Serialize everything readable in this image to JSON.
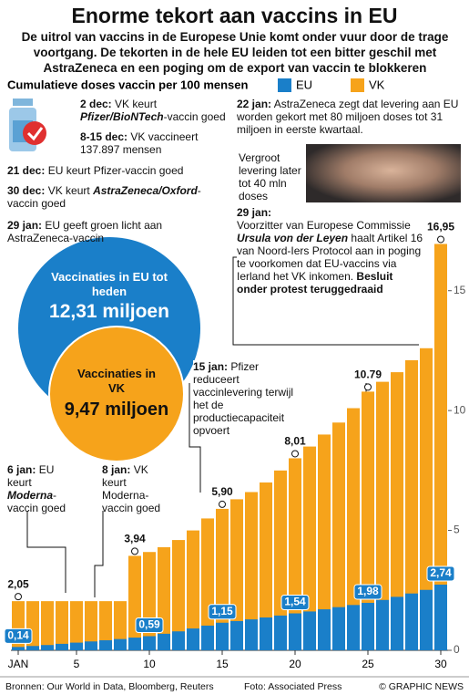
{
  "chart_data": {
    "type": "bar",
    "title": "Enorme tekort aan vaccins in EU",
    "subtitle": "De uitrol van vaccins in de Europese Unie komt onder vuur door de trage voortgang. De tekorten in de hele EU leiden tot een bitter geschil met AstraZeneca en een poging om de export van vaccin te blokkeren",
    "value_axis_label": "Cumulatieve doses vaccin per 100 mensen",
    "categories": [
      "JAN",
      null,
      null,
      null,
      "5",
      null,
      null,
      null,
      null,
      "10",
      null,
      null,
      null,
      null,
      "15",
      null,
      null,
      null,
      null,
      "20",
      null,
      null,
      null,
      null,
      "25",
      null,
      null,
      null,
      null,
      "30"
    ],
    "series": [
      {
        "name": "VK",
        "color": "#f6a31b",
        "values": [
          2.05,
          2.05,
          2.05,
          2.05,
          2.05,
          2.05,
          2.05,
          2.05,
          3.94,
          4.1,
          4.3,
          4.6,
          5.0,
          5.5,
          5.9,
          6.3,
          6.6,
          7.0,
          7.5,
          8.01,
          8.5,
          9.0,
          9.5,
          10.1,
          10.79,
          11.2,
          11.6,
          12.1,
          12.6,
          16.95
        ],
        "value_labels": [
          "2,05",
          null,
          null,
          null,
          null,
          null,
          null,
          null,
          "3,94",
          null,
          null,
          null,
          null,
          null,
          "5,90",
          null,
          null,
          null,
          null,
          "8,01",
          null,
          null,
          null,
          null,
          "10.79",
          null,
          null,
          null,
          null,
          "16,95"
        ]
      },
      {
        "name": "EU",
        "color": "#1a7fc9",
        "values": [
          0.14,
          0.18,
          0.22,
          0.27,
          0.32,
          0.37,
          0.42,
          0.47,
          0.53,
          0.59,
          0.69,
          0.79,
          0.91,
          1.03,
          1.15,
          1.22,
          1.29,
          1.37,
          1.45,
          1.54,
          1.62,
          1.71,
          1.8,
          1.89,
          1.98,
          2.1,
          2.23,
          2.37,
          2.52,
          2.74
        ],
        "value_labels": [
          "0,14",
          null,
          null,
          null,
          null,
          null,
          null,
          null,
          null,
          "0,59",
          null,
          null,
          null,
          null,
          "1,15",
          null,
          null,
          null,
          null,
          "1,54",
          null,
          null,
          null,
          null,
          "1,98",
          null,
          null,
          null,
          null,
          "2,74"
        ]
      }
    ],
    "ylim": [
      0,
      17.5
    ],
    "yticks": [
      0,
      5,
      10,
      15
    ],
    "annotations": [
      {
        "date": "2 dec:",
        "text": [
          "VK keurt",
          "Pfizer/BioNTech",
          "-vaccin goed"
        ]
      },
      {
        "date": "8-15 dec:",
        "text": [
          "VK vaccineert 137.897 mensen"
        ]
      },
      {
        "date": "21 dec:",
        "text": [
          "EU keurt Pfizer-vaccin goed"
        ]
      },
      {
        "date": "30 dec:",
        "text": [
          "VK keurt",
          "AstraZeneca/Oxford",
          "-vaccin goed"
        ]
      },
      {
        "date": "29 jan:",
        "text": [
          "EU geeft groen licht aan AstraZeneca-vaccin"
        ]
      },
      {
        "date": "22 jan:",
        "text": [
          "AstraZeneca zegt dat levering aan EU worden gekort met 80 miljoen doses tot 31 miljoen in eerste kwartaal."
        ]
      },
      {
        "text": [
          "Vergroot levering later tot 40 mln doses"
        ]
      },
      {
        "date": "29 jan:",
        "text": [
          "Voorzitter van Europese Commissie",
          "Ursula von der Leyen",
          "haalt Artikel 16 van Noord-Iers Protocol aan in poging te voorkomen dat EU-vaccins via Ierland het VK inkomen.",
          "Besluit onder protest teruggedraaid"
        ]
      },
      {
        "date": "15 jan:",
        "text": [
          "Pfizer reduceert vaccinlevering terwijl het de productiecapaciteit opvoert"
        ]
      },
      {
        "date": "6 jan:",
        "text": [
          "EU keurt",
          "Moderna",
          "-vaccin goed"
        ]
      },
      {
        "date": "8 jan:",
        "text": [
          "VK keurt Moderna-vaccin goed"
        ]
      }
    ],
    "callouts": [
      {
        "label": "Vaccinaties in EU tot heden",
        "value": "12,31 miljoen"
      },
      {
        "label": "Vaccinaties in VK",
        "value": "9,47 miljoen"
      }
    ],
    "footer": {
      "sources": "Bronnen: Our World in Data, Bloomberg, Reuters",
      "photo": "Foto: Associated Press",
      "credit": "© GRAPHIC NEWS"
    }
  }
}
